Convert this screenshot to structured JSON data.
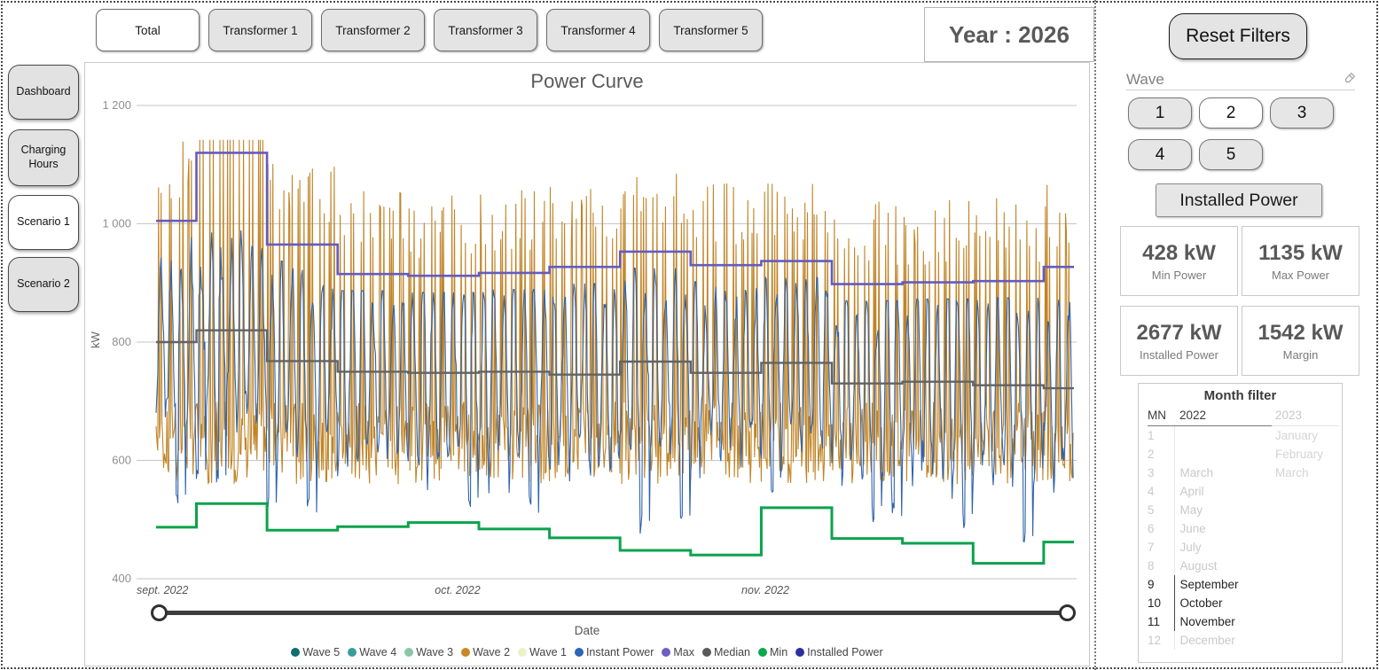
{
  "header": {
    "year_label": "Year : 2026",
    "reset_filters_label": "Reset Filters"
  },
  "top_tabs": [
    {
      "label": "Total",
      "active": true
    },
    {
      "label": "Transformer 1",
      "active": false
    },
    {
      "label": "Transformer 2",
      "active": false
    },
    {
      "label": "Transformer 3",
      "active": false
    },
    {
      "label": "Transformer 4",
      "active": false
    },
    {
      "label": "Transformer 5",
      "active": false
    }
  ],
  "sidebar": [
    {
      "label": "Dashboard",
      "active": false
    },
    {
      "label": "Charging Hours",
      "active": false
    },
    {
      "label": "Scenario 1",
      "active": true
    },
    {
      "label": "Scenario 2",
      "active": false
    }
  ],
  "wave_filter": {
    "title": "Wave",
    "options": [
      {
        "label": "1",
        "selected": false
      },
      {
        "label": "2",
        "selected": true
      },
      {
        "label": "3",
        "selected": false
      },
      {
        "label": "4",
        "selected": false
      },
      {
        "label": "5",
        "selected": false
      }
    ]
  },
  "installed_power_button_label": "Installed Power",
  "stats": [
    {
      "value": "428 kW",
      "label": "Min Power"
    },
    {
      "value": "1135 kW",
      "label": "Max Power"
    },
    {
      "value": "2677 kW",
      "label": "Installed Power"
    },
    {
      "value": "1542 kW",
      "label": "Margin"
    }
  ],
  "month_filter": {
    "title": "Month filter",
    "columns": [
      "MN",
      "2022",
      "2023"
    ],
    "rows": [
      {
        "mn": "1",
        "y2022": "",
        "y2023": "January",
        "selected": false
      },
      {
        "mn": "2",
        "y2022": "",
        "y2023": "February",
        "selected": false
      },
      {
        "mn": "3",
        "y2022": "March",
        "y2023": "March",
        "selected": false
      },
      {
        "mn": "4",
        "y2022": "April",
        "y2023": "",
        "selected": false
      },
      {
        "mn": "5",
        "y2022": "May",
        "y2023": "",
        "selected": false
      },
      {
        "mn": "6",
        "y2022": "June",
        "y2023": "",
        "selected": false
      },
      {
        "mn": "7",
        "y2022": "July",
        "y2023": "",
        "selected": false
      },
      {
        "mn": "8",
        "y2022": "August",
        "y2023": "",
        "selected": false
      },
      {
        "mn": "9",
        "y2022": "September",
        "y2023": "",
        "selected": true
      },
      {
        "mn": "10",
        "y2022": "October",
        "y2023": "",
        "selected": true
      },
      {
        "mn": "11",
        "y2022": "November",
        "y2023": "",
        "selected": true
      },
      {
        "mn": "12",
        "y2022": "December",
        "y2023": "",
        "selected": false
      }
    ]
  },
  "chart_data": {
    "type": "line",
    "title": "Power Curve",
    "ylabel": "kW",
    "xlabel": "Date",
    "ylim": [
      400,
      1200
    ],
    "y_ticks": [
      400,
      600,
      800,
      1000,
      1200
    ],
    "y_tick_labels": [
      "400",
      "600",
      "800",
      "1 000",
      "1 200"
    ],
    "x_tick_labels": [
      "sept. 2022",
      "oct. 2022",
      "nov. 2022"
    ],
    "x_range_days": 91,
    "grid": true,
    "legend_position": "bottom",
    "week_boundaries_day": [
      0,
      4,
      11,
      18,
      25,
      32,
      39,
      46,
      53,
      60,
      67,
      74,
      81,
      88,
      91
    ],
    "series": [
      {
        "name": "Max",
        "type": "step-weekly",
        "color": "#655bbe",
        "values": [
          1005,
          1120,
          965,
          915,
          912,
          917,
          927,
          953,
          930,
          937,
          898,
          901,
          903,
          927
        ]
      },
      {
        "name": "Median",
        "type": "step-weekly",
        "color": "#636363",
        "values": [
          800,
          820,
          768,
          750,
          748,
          750,
          745,
          767,
          748,
          765,
          730,
          733,
          727,
          722
        ]
      },
      {
        "name": "Min",
        "type": "step-weekly",
        "color": "#0ca24c",
        "values": [
          487,
          527,
          482,
          488,
          495,
          484,
          469,
          448,
          440,
          520,
          468,
          460,
          426,
          462
        ]
      },
      {
        "name": "Instant Power",
        "type": "noisy-daily",
        "color": "#2e63ae",
        "seed": 42,
        "samples_per_day": 12,
        "amp_range": [
          100,
          170
        ],
        "noise": 60,
        "dip_probability": 0.13,
        "envelope": "oscillates daily between ~550 and ~950 kW, dipping to the Min line on some days"
      },
      {
        "name": "Wave 2",
        "type": "daily-spikes",
        "color": "#c08427",
        "seed": 7,
        "base_range": [
          560,
          700
        ],
        "spike_above_max": [
          30,
          140
        ],
        "max_value": 1142,
        "envelope": "narrow daily spikes reaching ~950-1140 kW"
      }
    ],
    "legend": [
      {
        "label": "Wave 5",
        "color": "#116d70"
      },
      {
        "label": "Wave 4",
        "color": "#3a9d9b"
      },
      {
        "label": "Wave 3",
        "color": "#8ac7a4"
      },
      {
        "label": "Wave 2",
        "color": "#c8882a"
      },
      {
        "label": "Wave 1",
        "color": "#eef0c8"
      },
      {
        "label": "Instant Power",
        "color": "#2e63b8"
      },
      {
        "label": "Max",
        "color": "#6b5fc0"
      },
      {
        "label": "Median",
        "color": "#5a5a5a"
      },
      {
        "label": "Min",
        "color": "#0aa84f"
      },
      {
        "label": "Installed Power",
        "color": "#2c2f9e"
      }
    ]
  }
}
